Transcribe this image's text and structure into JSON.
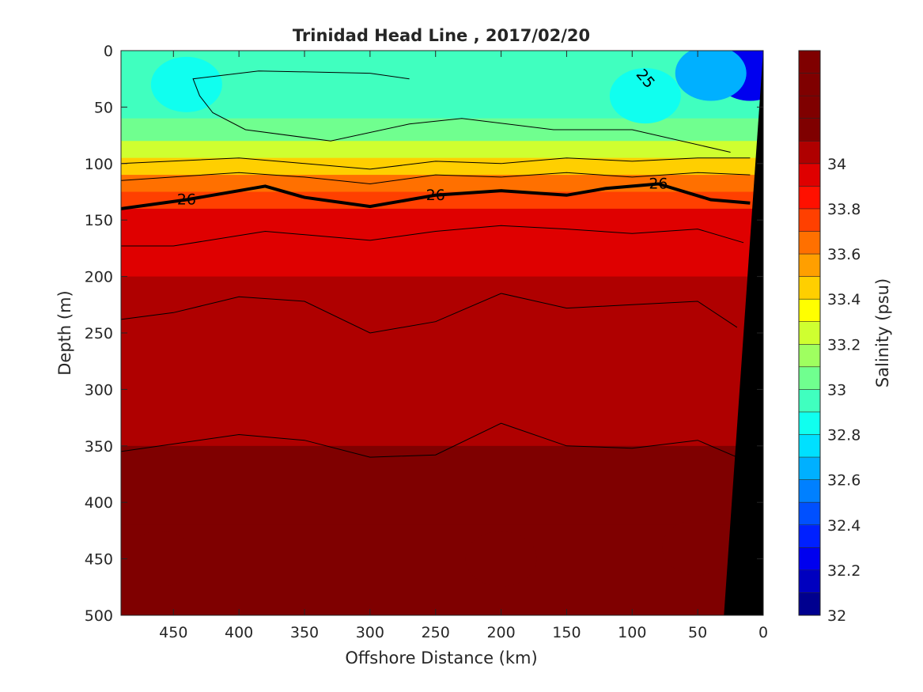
{
  "chart_data": {
    "type": "heatmap",
    "title": "Trinidad Head Line , 2017/02/20",
    "xlabel": "Offshore Distance (km)",
    "ylabel": "Depth (m)",
    "colorbar_label": "Salinity (psu)",
    "xlim": [
      490,
      0
    ],
    "ylim": [
      0,
      500
    ],
    "x_ticks": [
      "450",
      "400",
      "350",
      "300",
      "250",
      "200",
      "150",
      "100",
      "50",
      "0"
    ],
    "y_ticks": [
      "0",
      "50",
      "100",
      "150",
      "200",
      "250",
      "300",
      "350",
      "400",
      "450",
      "500"
    ],
    "colorbar_range": [
      32,
      34.5
    ],
    "colorbar_step": 0.1,
    "colorbar_ticks": [
      "32",
      "32.2",
      "32.4",
      "32.6",
      "32.8",
      "33",
      "33.2",
      "33.4",
      "33.6",
      "33.8",
      "34"
    ],
    "colorbar_colors": [
      "#00008f",
      "#0000bf",
      "#0000ef",
      "#0020ff",
      "#0050ff",
      "#0080ff",
      "#00b0ff",
      "#00e0ff",
      "#10ffef",
      "#40ffbf",
      "#70ff8f",
      "#9fff60",
      "#cfff30",
      "#ffff00",
      "#ffcf00",
      "#ff9f00",
      "#ff7000",
      "#ff4000",
      "#ff1000",
      "#df0000",
      "#af0000",
      "#7f0000",
      "#7f0000",
      "#7f0000",
      "#7f0000"
    ],
    "salinity_profile": [
      {
        "depth": 0,
        "salinity": 32.85
      },
      {
        "depth": 60,
        "salinity": 32.95
      },
      {
        "depth": 80,
        "salinity": 33.1
      },
      {
        "depth": 95,
        "salinity": 33.35
      },
      {
        "depth": 110,
        "salinity": 33.5
      },
      {
        "depth": 125,
        "salinity": 33.7
      },
      {
        "depth": 140,
        "salinity": 33.85
      },
      {
        "depth": 160,
        "salinity": 33.95
      },
      {
        "depth": 200,
        "salinity": 34.02
      },
      {
        "depth": 350,
        "salinity": 34.1
      },
      {
        "depth": 420,
        "salinity": 34.2
      },
      {
        "depth": 500,
        "salinity": 34.3
      }
    ],
    "surface_fresh_features": [
      {
        "x": 10,
        "depth": 20,
        "salinity": 32.3
      },
      {
        "x": 40,
        "depth": 20,
        "salinity": 32.65
      },
      {
        "x": 90,
        "depth": 40,
        "salinity": 32.85
      },
      {
        "x": 440,
        "depth": 30,
        "salinity": 32.85
      }
    ],
    "deep_salty_features": [
      {
        "x": 460,
        "depth": 450,
        "salinity": 34.2
      },
      {
        "x": 200,
        "depth": 450,
        "salinity": 34.25
      },
      {
        "x": 50,
        "depth": 440,
        "salinity": 34.25
      }
    ],
    "contours": [
      {
        "level": "",
        "bold": false,
        "points": [
          [
            270,
            25
          ],
          [
            300,
            20
          ],
          [
            385,
            18
          ],
          [
            435,
            25
          ],
          [
            430,
            40
          ],
          [
            420,
            55
          ],
          [
            395,
            70
          ],
          [
            330,
            80
          ],
          [
            270,
            65
          ],
          [
            230,
            60
          ],
          [
            160,
            70
          ],
          [
            100,
            70
          ],
          [
            25,
            90
          ]
        ]
      },
      {
        "level": "",
        "bold": false,
        "points": [
          [
            490,
            100
          ],
          [
            400,
            95
          ],
          [
            350,
            100
          ],
          [
            300,
            105
          ],
          [
            250,
            98
          ],
          [
            200,
            100
          ],
          [
            150,
            95
          ],
          [
            100,
            98
          ],
          [
            50,
            95
          ],
          [
            10,
            95
          ]
        ]
      },
      {
        "level": "",
        "bold": false,
        "points": [
          [
            490,
            115
          ],
          [
            400,
            108
          ],
          [
            350,
            112
          ],
          [
            300,
            118
          ],
          [
            250,
            110
          ],
          [
            200,
            112
          ],
          [
            150,
            108
          ],
          [
            100,
            112
          ],
          [
            50,
            108
          ],
          [
            10,
            110
          ]
        ]
      },
      {
        "level": "26",
        "bold": true,
        "points": [
          [
            490,
            140
          ],
          [
            440,
            132
          ],
          [
            380,
            120
          ],
          [
            350,
            130
          ],
          [
            300,
            138
          ],
          [
            250,
            128
          ],
          [
            200,
            124
          ],
          [
            150,
            128
          ],
          [
            120,
            122
          ],
          [
            80,
            118
          ],
          [
            40,
            132
          ],
          [
            10,
            135
          ]
        ]
      },
      {
        "level": "",
        "bold": false,
        "points": [
          [
            490,
            173
          ],
          [
            450,
            173
          ],
          [
            380,
            160
          ],
          [
            300,
            168
          ],
          [
            250,
            160
          ],
          [
            200,
            155
          ],
          [
            150,
            158
          ],
          [
            100,
            162
          ],
          [
            50,
            158
          ],
          [
            15,
            170
          ]
        ]
      },
      {
        "level": "",
        "bold": false,
        "points": [
          [
            490,
            238
          ],
          [
            450,
            232
          ],
          [
            400,
            218
          ],
          [
            350,
            222
          ],
          [
            300,
            250
          ],
          [
            250,
            240
          ],
          [
            200,
            215
          ],
          [
            150,
            228
          ],
          [
            100,
            225
          ],
          [
            50,
            222
          ],
          [
            20,
            245
          ]
        ]
      },
      {
        "level": "",
        "bold": false,
        "points": [
          [
            490,
            355
          ],
          [
            460,
            350
          ],
          [
            400,
            340
          ],
          [
            350,
            345
          ],
          [
            300,
            360
          ],
          [
            250,
            358
          ],
          [
            200,
            330
          ],
          [
            150,
            350
          ],
          [
            100,
            352
          ],
          [
            50,
            345
          ],
          [
            20,
            360
          ]
        ]
      }
    ],
    "extra_contour_labels": [
      {
        "text": "25",
        "x": 90,
        "depth": 25
      }
    ],
    "bathymetry": [
      [
        0,
        0
      ],
      [
        30,
        500
      ]
    ]
  }
}
